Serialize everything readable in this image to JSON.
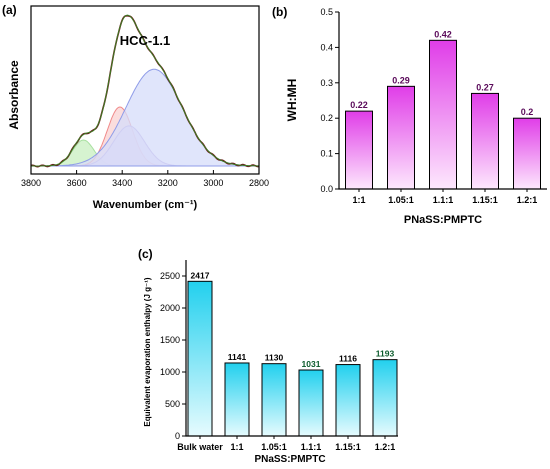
{
  "chart_data": [
    {
      "panel": "(a)",
      "type": "line",
      "title": "HCC-1.1",
      "xlabel": "Wavenumber (cm⁻¹)",
      "ylabel": "Absorbance",
      "xlim": [
        3800,
        2800
      ],
      "x_reversed": true,
      "xticks": [
        "3800",
        "3600",
        "3400",
        "3200",
        "3000",
        "2800"
      ],
      "grid": false,
      "series": [
        {
          "role": "fitted-peak",
          "center": 3570,
          "height": 0.22,
          "fwhm": 110,
          "color": "#a8e0a0",
          "fill": "#c8efc0"
        },
        {
          "role": "fitted-peak",
          "center": 3410,
          "height": 0.5,
          "fwhm": 130,
          "color": "#f08a8a",
          "fill": "#f9d2d2"
        },
        {
          "role": "fitted-peak",
          "center": 3370,
          "height": 0.34,
          "fwhm": 160,
          "color": "#b7a3e0",
          "fill": "#ddd3f3"
        },
        {
          "role": "fitted-peak",
          "center": 3260,
          "height": 0.82,
          "fwhm": 290,
          "color": "#8f9ce8",
          "fill": "#d6dcfa"
        },
        {
          "role": "experimental-envelope",
          "color": "#6b1e1e"
        },
        {
          "role": "fit-envelope",
          "color": "#3b7d23"
        }
      ]
    },
    {
      "panel": "(b)",
      "type": "bar",
      "categories": [
        "1:1",
        "1.05:1",
        "1.1:1",
        "1.15:1",
        "1.2:1"
      ],
      "values": [
        0.22,
        0.29,
        0.42,
        0.27,
        0.2
      ],
      "value_labels": [
        "0.22",
        "0.29",
        "0.42",
        "0.27",
        "0.2"
      ],
      "xlabel": "PNaSS:PMPTC",
      "ylabel": "WH:MH",
      "ylim": [
        0.0,
        0.5
      ],
      "yticks": [
        "0.0",
        "0.1",
        "0.2",
        "0.3",
        "0.4",
        "0.5"
      ],
      "grid": false,
      "colors": {
        "top": "#e03de8",
        "bottom": "#fde8fd",
        "edge": "#000000",
        "label": "#5a0a5a"
      }
    },
    {
      "panel": "(c)",
      "type": "bar",
      "categories": [
        "Bulk water",
        "1:1",
        "1.05:1",
        "1.1:1",
        "1.15:1",
        "1.2:1"
      ],
      "values": [
        2417,
        1141,
        1130,
        1031,
        1116,
        1193
      ],
      "value_labels": [
        "2417",
        "1141",
        "1130",
        "1031",
        "1116",
        "1193"
      ],
      "xlabel": "PNaSS:PMPTC",
      "ylabel": "Equivalent evaporation enthalpy (J g⁻¹)",
      "ylim": [
        0,
        2750
      ],
      "yticks": [
        "0",
        "500",
        "1000",
        "1500",
        "2000",
        "2500"
      ],
      "grid": false,
      "colors": {
        "top": "#22d0ee",
        "bottom": "#e6fbfe",
        "edge": "#000000",
        "label": "#000000",
        "label_alt": "#0a5a2a"
      }
    }
  ]
}
